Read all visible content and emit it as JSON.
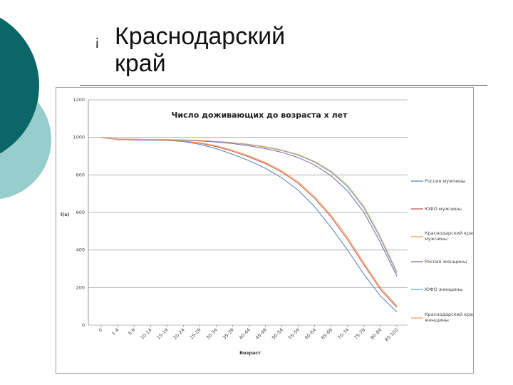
{
  "slide": {
    "bullet_glyph": "¡",
    "title_line1": "Краснодарский",
    "title_line2": "край",
    "colors": {
      "circle_dark": "#0b6767",
      "circle_light": "#98cdcd"
    }
  },
  "chart_data": {
    "type": "line",
    "title": "Число доживающих до возраста х лет",
    "xlabel": "Возраст",
    "ylabel": "l(x)",
    "ylim": [
      0,
      1200
    ],
    "yticks": [
      0,
      200,
      400,
      600,
      800,
      1000,
      1200
    ],
    "grid": true,
    "legend_position": "right",
    "categories": [
      "0",
      "1-4",
      "5-9",
      "10-14",
      "15-19",
      "20-24",
      "25-29",
      "30-34",
      "35-39",
      "40-44",
      "45-49",
      "50-54",
      "55-59",
      "60-64",
      "65-69",
      "70-74",
      "75-79",
      "80-84",
      "85-100"
    ],
    "series": [
      {
        "name": "Россия мужчины",
        "color": "#4f81bd",
        "values": [
          1000,
          988,
          986,
          985,
          984,
          978,
          963,
          940,
          910,
          876,
          835,
          784,
          718,
          630,
          520,
          400,
          270,
          155,
          70
        ]
      },
      {
        "name": "ЮФО мужчины",
        "color": "#c0504d",
        "values": [
          1000,
          989,
          987,
          986,
          985,
          980,
          969,
          951,
          926,
          896,
          860,
          815,
          755,
          675,
          575,
          455,
          320,
          190,
          95
        ]
      },
      {
        "name": "Краснодарский край мужчины",
        "color": "#f79646",
        "values": [
          1000,
          989,
          988,
          987,
          986,
          981,
          971,
          955,
          932,
          902,
          866,
          822,
          762,
          684,
          585,
          468,
          330,
          200,
          103
        ]
      },
      {
        "name": "Россия женщины",
        "color": "#8064a2",
        "values": [
          1000,
          990,
          989,
          988,
          987,
          985,
          981,
          975,
          967,
          955,
          940,
          920,
          892,
          852,
          795,
          715,
          600,
          440,
          260
        ]
      },
      {
        "name": "ЮФО женщины",
        "color": "#4bacc6",
        "values": [
          1000,
          991,
          990,
          989,
          988,
          986,
          983,
          978,
          971,
          961,
          948,
          930,
          905,
          868,
          815,
          737,
          623,
          462,
          275
        ]
      },
      {
        "name": "Краснодарский край женщины",
        "color": "#f59d56",
        "values": [
          1000,
          991,
          990,
          989,
          988,
          987,
          984,
          979,
          972,
          963,
          950,
          933,
          908,
          872,
          820,
          745,
          632,
          472,
          285
        ]
      }
    ]
  }
}
